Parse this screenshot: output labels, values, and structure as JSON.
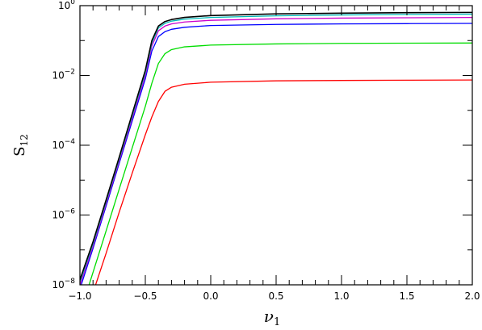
{
  "chart_data": {
    "type": "line",
    "title": "",
    "xlabel": "ν",
    "xlabel_sub": "1",
    "ylabel": "S",
    "ylabel_sub": "12",
    "xlim": [
      -1.0,
      2.0
    ],
    "ylim": [
      1e-08,
      1
    ],
    "yscale": "log",
    "grid": false,
    "x_ticks": [
      -1.0,
      -0.5,
      0.0,
      0.5,
      1.0,
      1.5,
      2.0
    ],
    "x_tick_labels": [
      "−1.0",
      "−0.5",
      "0.0",
      "0.5",
      "1.0",
      "1.5",
      "2.0"
    ],
    "y_tick_exponents": [
      -8,
      -6,
      -4,
      -2,
      0
    ],
    "y_tick_base": "10",
    "series": [
      {
        "color": "#ff0000",
        "x": [
          -0.88,
          -0.8,
          -0.7,
          -0.6,
          -0.5,
          -0.45,
          -0.4,
          -0.35,
          -0.3,
          -0.2,
          0.0,
          0.5,
          1.0,
          1.5,
          2.0
        ],
        "y": [
          1e-08,
          8e-08,
          1.2e-06,
          1.6e-05,
          0.0002,
          0.00065,
          0.0018,
          0.0035,
          0.0046,
          0.0056,
          0.0064,
          0.007,
          0.0072,
          0.0073,
          0.0074
        ]
      },
      {
        "color": "#00dd00",
        "x": [
          -0.93,
          -0.8,
          -0.7,
          -0.6,
          -0.5,
          -0.45,
          -0.4,
          -0.35,
          -0.3,
          -0.2,
          0.0,
          0.5,
          1.0,
          1.5,
          2.0
        ],
        "y": [
          1e-08,
          3.5e-07,
          5.5e-06,
          8.5e-05,
          0.0013,
          0.006,
          0.022,
          0.042,
          0.055,
          0.066,
          0.074,
          0.08,
          0.083,
          0.084,
          0.085
        ]
      },
      {
        "color": "#0000ff",
        "x": [
          -0.99,
          -0.9,
          -0.8,
          -0.7,
          -0.6,
          -0.5,
          -0.45,
          -0.4,
          -0.35,
          -0.3,
          -0.2,
          0.0,
          0.5,
          1.0,
          1.5,
          2.0
        ],
        "y": [
          1e-08,
          1.1e-07,
          1.8e-06,
          3e-05,
          0.0005,
          0.008,
          0.05,
          0.13,
          0.18,
          0.21,
          0.24,
          0.27,
          0.29,
          0.3,
          0.305,
          0.31
        ]
      },
      {
        "color": "#cc00cc",
        "x": [
          -1.0,
          -0.9,
          -0.8,
          -0.7,
          -0.6,
          -0.5,
          -0.45,
          -0.4,
          -0.35,
          -0.3,
          -0.2,
          0.0,
          0.5,
          1.0,
          1.5,
          2.0
        ],
        "y": [
          1e-08,
          1.3e-07,
          2.1e-06,
          3.5e-05,
          0.0006,
          0.01,
          0.07,
          0.19,
          0.26,
          0.3,
          0.34,
          0.38,
          0.42,
          0.44,
          0.45,
          0.46
        ]
      },
      {
        "color": "#00bbbb",
        "x": [
          -1.0,
          -0.9,
          -0.8,
          -0.7,
          -0.6,
          -0.5,
          -0.45,
          -0.4,
          -0.35,
          -0.3,
          -0.2,
          0.0,
          0.5,
          1.0,
          1.5,
          2.0
        ],
        "y": [
          1.2e-08,
          1.5e-07,
          2.4e-06,
          4e-05,
          0.0007,
          0.012,
          0.085,
          0.23,
          0.31,
          0.36,
          0.41,
          0.46,
          0.51,
          0.54,
          0.56,
          0.57
        ]
      },
      {
        "color": "#000000",
        "x": [
          -1.0,
          -0.9,
          -0.8,
          -0.7,
          -0.6,
          -0.5,
          -0.45,
          -0.4,
          -0.35,
          -0.3,
          -0.2,
          0.0,
          0.5,
          1.0,
          1.5,
          2.0
        ],
        "y": [
          1.4e-08,
          1.7e-07,
          2.7e-06,
          4.5e-05,
          0.0008,
          0.014,
          0.1,
          0.26,
          0.35,
          0.4,
          0.46,
          0.52,
          0.58,
          0.61,
          0.63,
          0.64
        ]
      }
    ]
  }
}
